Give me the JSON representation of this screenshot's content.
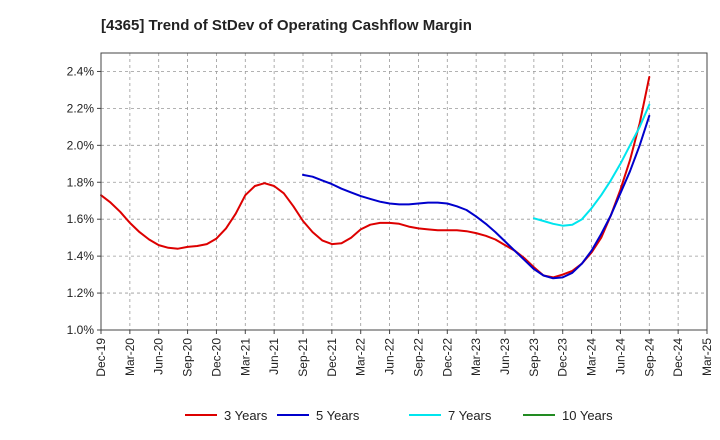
{
  "chart_data": {
    "type": "line",
    "title": "[4365]  Trend of StDev of Operating Cashflow Margin",
    "xlabel": "",
    "ylabel": "",
    "ylim": [
      1.0,
      2.5
    ],
    "y_unit": "%",
    "y_ticks": [
      "1.0%",
      "1.2%",
      "1.4%",
      "1.6%",
      "1.8%",
      "2.0%",
      "2.2%",
      "2.4%"
    ],
    "y_tick_values": [
      1.0,
      1.2,
      1.4,
      1.6,
      1.8,
      2.0,
      2.2,
      2.4
    ],
    "x_ticks": [
      "Dec-19",
      "Mar-20",
      "Jun-20",
      "Sep-20",
      "Dec-20",
      "Mar-21",
      "Jun-21",
      "Sep-21",
      "Dec-21",
      "Mar-22",
      "Jun-22",
      "Sep-22",
      "Dec-22",
      "Mar-23",
      "Jun-23",
      "Sep-23",
      "Dec-23",
      "Mar-24",
      "Jun-24",
      "Sep-24",
      "Dec-24",
      "Mar-25"
    ],
    "grid": true,
    "legend_position": "bottom",
    "series": [
      {
        "name": "3 Years",
        "color": "#dd0000",
        "x": [
          "Dec-19",
          "Jan-20",
          "Feb-20",
          "Mar-20",
          "Apr-20",
          "May-20",
          "Jun-20",
          "Jul-20",
          "Aug-20",
          "Sep-20",
          "Oct-20",
          "Nov-20",
          "Dec-20",
          "Jan-21",
          "Feb-21",
          "Mar-21",
          "Apr-21",
          "May-21",
          "Jun-21",
          "Jul-21",
          "Aug-21",
          "Sep-21",
          "Oct-21",
          "Nov-21",
          "Dec-21",
          "Jan-22",
          "Feb-22",
          "Mar-22",
          "Apr-22",
          "May-22",
          "Jun-22",
          "Jul-22",
          "Aug-22",
          "Sep-22",
          "Oct-22",
          "Nov-22",
          "Dec-22",
          "Jan-23",
          "Feb-23",
          "Mar-23",
          "Apr-23",
          "May-23",
          "Jun-23",
          "Jul-23",
          "Aug-23",
          "Sep-23",
          "Oct-23",
          "Nov-23",
          "Dec-23",
          "Jan-24",
          "Feb-24",
          "Mar-24",
          "Apr-24",
          "May-24",
          "Jun-24",
          "Jul-24",
          "Aug-24",
          "Sep-24"
        ],
        "values": [
          1.73,
          1.69,
          1.64,
          1.58,
          1.53,
          1.49,
          1.46,
          1.445,
          1.44,
          1.45,
          1.455,
          1.465,
          1.495,
          1.55,
          1.63,
          1.73,
          1.78,
          1.795,
          1.78,
          1.74,
          1.67,
          1.59,
          1.53,
          1.485,
          1.465,
          1.47,
          1.5,
          1.545,
          1.57,
          1.58,
          1.58,
          1.575,
          1.56,
          1.55,
          1.545,
          1.54,
          1.54,
          1.54,
          1.535,
          1.525,
          1.51,
          1.49,
          1.46,
          1.43,
          1.39,
          1.34,
          1.295,
          1.285,
          1.3,
          1.32,
          1.36,
          1.42,
          1.5,
          1.62,
          1.76,
          1.92,
          2.12,
          2.37
        ]
      },
      {
        "name": "5 Years",
        "color": "#0000cc",
        "x": [
          "Sep-21",
          "Oct-21",
          "Nov-21",
          "Dec-21",
          "Jan-22",
          "Feb-22",
          "Mar-22",
          "Apr-22",
          "May-22",
          "Jun-22",
          "Jul-22",
          "Aug-22",
          "Sep-22",
          "Oct-22",
          "Nov-22",
          "Dec-22",
          "Jan-23",
          "Feb-23",
          "Mar-23",
          "Apr-23",
          "May-23",
          "Jun-23",
          "Jul-23",
          "Aug-23",
          "Sep-23",
          "Oct-23",
          "Nov-23",
          "Dec-23",
          "Jan-24",
          "Feb-24",
          "Mar-24",
          "Apr-24",
          "May-24",
          "Jun-24",
          "Jul-24",
          "Aug-24",
          "Sep-24"
        ],
        "values": [
          1.84,
          1.83,
          1.81,
          1.79,
          1.765,
          1.745,
          1.725,
          1.71,
          1.695,
          1.685,
          1.68,
          1.68,
          1.685,
          1.69,
          1.69,
          1.685,
          1.67,
          1.65,
          1.615,
          1.575,
          1.53,
          1.48,
          1.43,
          1.38,
          1.33,
          1.295,
          1.28,
          1.285,
          1.31,
          1.36,
          1.43,
          1.52,
          1.62,
          1.74,
          1.86,
          2.0,
          2.16
        ]
      },
      {
        "name": "7 Years",
        "color": "#00e5ee",
        "x": [
          "Sep-23",
          "Oct-23",
          "Nov-23",
          "Dec-23",
          "Jan-24",
          "Feb-24",
          "Mar-24",
          "Apr-24",
          "May-24",
          "Jun-24",
          "Jul-24",
          "Aug-24",
          "Sep-24"
        ],
        "values": [
          1.605,
          1.59,
          1.575,
          1.565,
          1.57,
          1.6,
          1.66,
          1.73,
          1.81,
          1.9,
          2.0,
          2.1,
          2.22
        ]
      },
      {
        "name": "10 Years",
        "color": "#228b22",
        "x": [],
        "values": []
      }
    ]
  }
}
